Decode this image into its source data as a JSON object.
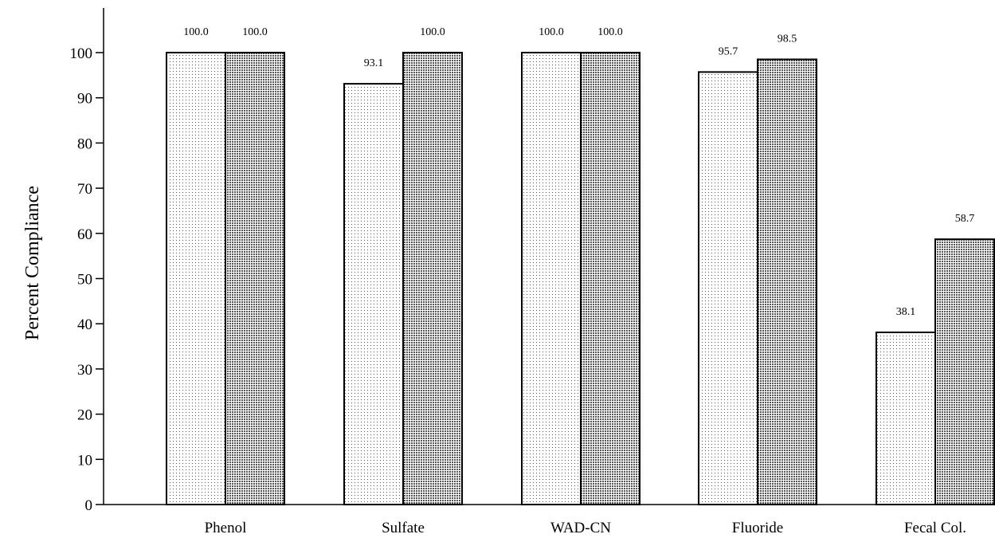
{
  "chart_data": {
    "type": "bar",
    "categories": [
      "Phenol",
      "Sulfate",
      "WAD-CN",
      "Fluoride",
      "Fecal Col."
    ],
    "series": [
      {
        "values": [
          100.0,
          93.1,
          100.0,
          95.7,
          38.1
        ],
        "pattern": "light-dots"
      },
      {
        "values": [
          100.0,
          100.0,
          100.0,
          98.5,
          58.7
        ],
        "pattern": "dense-dots"
      }
    ],
    "data_labels": [
      [
        "100.0",
        "93.1",
        "100.0",
        "95.7",
        "38.1"
      ],
      [
        "100.0",
        "100.0",
        "100.0",
        "98.5",
        "58.7"
      ]
    ],
    "title": "",
    "xlabel": "",
    "ylabel": "Percent Compliance",
    "ylim": [
      0,
      100
    ],
    "yticks": [
      "0",
      "10",
      "20",
      "30",
      "40",
      "50",
      "60",
      "70",
      "80",
      "90",
      "100"
    ],
    "grid": false,
    "legend": "none",
    "colors": {
      "bar_fill": "#ffffff",
      "bar_stroke": "#000000",
      "dot": "#000000"
    }
  }
}
